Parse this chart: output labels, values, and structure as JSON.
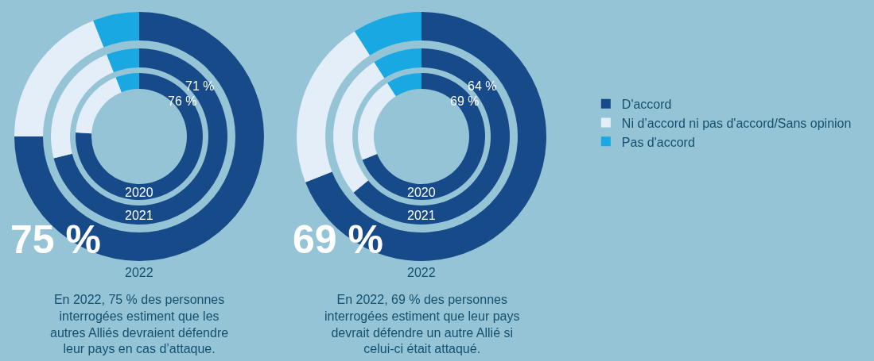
{
  "chart_data": [
    {
      "type": "donut",
      "categories": [
        "D'accord",
        "Ni d’accord ni pas d'accord/Sans opinion",
        "Pas d'accord"
      ],
      "colors": [
        "#174a88",
        "#e3eef8",
        "#1aa8e2"
      ],
      "legend": "right",
      "series": [
        {
          "name": "2020",
          "values": [
            76,
            18,
            6
          ],
          "value_labels": [
            "76 %",
            null,
            null
          ]
        },
        {
          "name": "2021",
          "values": [
            71,
            23,
            6
          ],
          "value_labels": [
            "71 %",
            null,
            null
          ]
        },
        {
          "name": "2022",
          "values": [
            75,
            19,
            6
          ],
          "value_labels": [
            "75 %",
            null,
            null
          ]
        }
      ],
      "annotations": [
        "En 2022, 75 % des personnes interrogées estiment que les autres Alliés devraient défendre leur pays en cas d’attaque."
      ]
    },
    {
      "type": "donut",
      "colors": [
        "#174a88",
        "#e3eef8",
        "#1aa8e2"
      ],
      "series": [
        {
          "name": "2020",
          "values": [
            69,
            22,
            9
          ],
          "value_labels": [
            "69 %",
            null,
            null
          ]
        },
        {
          "name": "2021",
          "values": [
            64,
            27,
            9
          ],
          "value_labels": [
            "64 %",
            null,
            null
          ]
        },
        {
          "name": "2022",
          "values": [
            69,
            22,
            9
          ],
          "value_labels": [
            "69 %",
            null,
            null
          ]
        }
      ],
      "annotations": [
        "En 2022, 69 % des personnes interrogées estiment que leur pays devrait défendre un autre Allié si celui-ci était attaqué."
      ]
    }
  ]
}
